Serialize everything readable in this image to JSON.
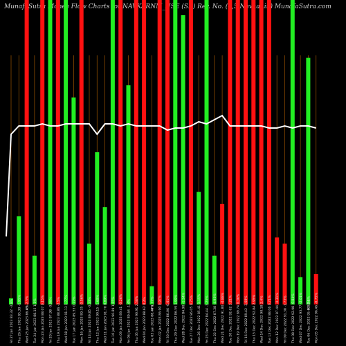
{
  "title": "MunafaSutra Money Flow Charts for NAVKARNM_NSE (SR) Rev. No. (4,5 Navkar.in) MunafaSutra.com",
  "chart_data": {
    "type": "bar",
    "title": "MunafaSutra Money Flow Charts for NAVKARNM_NSE (SR) Rev. No. (4,5 Navkar.in) MunafaSutra.com",
    "categories": [
      "Fri 27 Jan 2023 83.32 -3.9%",
      "Thu 26 Jan 2023 85.30 -1.95%",
      "Wed 25 Jan 2023 86.43 -2.5%",
      "Tue 24 Jan 2023 88.15 1.1%",
      "Mon 23 Jan 2023 88.07 0.15%",
      "Fri 20 Jan 2023 87.98 -0.96%",
      "Thu 19 Jan 2023 88.86 -2.5%",
      "Wed 18 Jan 2023 91.13 1.77%",
      "Tue 17 Jan 2023 89.55 0.22%",
      "Mon 16 Jan 2023 89.35 -0.56%",
      "Fri 13 Jan 2023 89.85 -0.33%",
      "Thu 12 Jan 2023 90.15 -1.69%",
      "Wed 11 Jan 2023 91.70 0.89%",
      "Tue 10 Jan 2023 90.89 1.65%",
      "Mon 09 Jan 2023 89.41 -0.26%",
      "Fri 06 Jan 2023 89.64 -1.4%",
      "Thu 05 Jan 2023 90.91 2.58%",
      "Wed 04 Jan 2023 88.62 0.2%",
      "Tue 03 Jan 2023 88.44 1.77%",
      "Mon 02 Jan 2023 86.90 0.97%",
      "Fri 30 Dec 2022 86.06 -0.61%",
      "Thu 29 Dec 2022 86.59 1.99%",
      "Wed 28 Dec 2022 84.90 -1.34%",
      "Tue 27 Dec 2022 86.05 0.75%",
      "Mon 26 Dec 2022 85.41 1.15%",
      "Fri 23 Dec 2022 84.44 -3.25%",
      "Thu 22 Dec 2022 87.28 -4.93%",
      "Wed 21 Dec 2022 91.80 -0.88%",
      "Tue 20 Dec 2022 92.62 3.21%",
      "Mon 19 Dec 2022 89.74 0.36%",
      "Fri 16 Dec 2022 89.42 -3.68%",
      "Thu 15 Dec 2022 92.84 2.95%",
      "Wed 14 Dec 2022 90.18 2.4%",
      "Tue 13 Dec 2022 88.06 0.71%",
      "Mon 12 Dec 2022 87.44 -4.31%",
      "Fri 09 Dec 2022 91.38 -1.73%",
      "Thu 08 Dec 2022 92.98 -0.84%",
      "Wed 07 Dec 2022 93.77 -2.01%",
      "Tue 06 Dec 2022 95.69 -0.8%",
      "Mon 05 Dec 2022 96.46 -0.75%"
    ],
    "bars": [
      {
        "color": "green",
        "value": 2
      },
      {
        "color": "green",
        "value": 29
      },
      {
        "color": "red",
        "value": 100
      },
      {
        "color": "green",
        "value": 16
      },
      {
        "color": "red",
        "value": 100
      },
      {
        "color": "green",
        "value": 100
      },
      {
        "color": "red",
        "value": 100
      },
      {
        "color": "green",
        "value": 100
      },
      {
        "color": "green",
        "value": 68
      },
      {
        "color": "red",
        "value": 100
      },
      {
        "color": "green",
        "value": 20
      },
      {
        "color": "green",
        "value": 50
      },
      {
        "color": "green",
        "value": 32
      },
      {
        "color": "green",
        "value": 100
      },
      {
        "color": "red",
        "value": 100
      },
      {
        "color": "green",
        "value": 72
      },
      {
        "color": "red",
        "value": 100
      },
      {
        "color": "red",
        "value": 100
      },
      {
        "color": "green",
        "value": 6
      },
      {
        "color": "red",
        "value": 100
      },
      {
        "color": "red",
        "value": 100
      },
      {
        "color": "green",
        "value": 100
      },
      {
        "color": "green",
        "value": 95
      },
      {
        "color": "red",
        "value": 100
      },
      {
        "color": "green",
        "value": 37
      },
      {
        "color": "green",
        "value": 100
      },
      {
        "color": "green",
        "value": 16
      },
      {
        "color": "red",
        "value": 33
      },
      {
        "color": "red",
        "value": 100
      },
      {
        "color": "red",
        "value": 100
      },
      {
        "color": "red",
        "value": 100
      },
      {
        "color": "red",
        "value": 100
      },
      {
        "color": "red",
        "value": 100
      },
      {
        "color": "red",
        "value": 100
      },
      {
        "color": "red",
        "value": 22
      },
      {
        "color": "red",
        "value": 20
      },
      {
        "color": "green",
        "value": 100
      },
      {
        "color": "green",
        "value": 9
      },
      {
        "color": "green",
        "value": 81
      },
      {
        "color": "red",
        "value": 10
      }
    ],
    "price_line": [
      82,
      86,
      86,
      86,
      87,
      86,
      86,
      87,
      87,
      87,
      87,
      82,
      87,
      87,
      86,
      87,
      86,
      86,
      86,
      86,
      84,
      85,
      85,
      86,
      88,
      87,
      89,
      91,
      86,
      86,
      86,
      86,
      86,
      85,
      85,
      86,
      85,
      86,
      86,
      85
    ],
    "ylim": [
      0,
      100
    ],
    "small_marks": [
      "0%",
      "0%",
      "0.03%"
    ],
    "colors": {
      "background": "#000000",
      "up": "#22ee22",
      "down": "#ff1111",
      "line": "#ffffff",
      "grid": "#8a4a00"
    }
  }
}
